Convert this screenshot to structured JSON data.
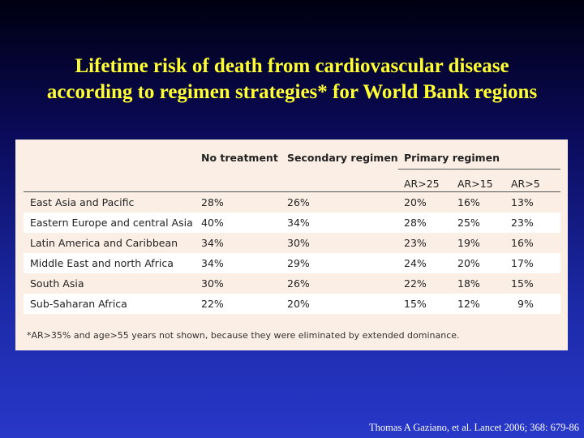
{
  "title": {
    "line1": "Lifetime risk of death from cardiovascular disease",
    "line2": "according to regimen strategies* for World Bank regions"
  },
  "table": {
    "headers": {
      "no_treatment": "No treatment",
      "secondary": "Secondary regimen",
      "primary": "Primary regimen"
    },
    "subheaders": [
      "AR>25",
      "AR>15",
      "AR>5"
    ],
    "rows": [
      {
        "region": "East Asia and Pacific",
        "values": [
          "28%",
          "26%",
          "20%",
          "16%",
          "13%"
        ]
      },
      {
        "region": "Eastern Europe and central Asia",
        "values": [
          "40%",
          "34%",
          "28%",
          "25%",
          "23%"
        ]
      },
      {
        "region": "Latin America and Caribbean",
        "values": [
          "34%",
          "30%",
          "23%",
          "19%",
          "16%"
        ]
      },
      {
        "region": "Middle East and north Africa",
        "values": [
          "34%",
          "29%",
          "24%",
          "20%",
          "17%"
        ]
      },
      {
        "region": "South Asia",
        "values": [
          "30%",
          "26%",
          "22%",
          "18%",
          "15%"
        ]
      },
      {
        "region": "Sub-Saharan Africa",
        "values": [
          "22%",
          "20%",
          "15%",
          "12%",
          "9%"
        ]
      }
    ],
    "footnote": "*AR>35% and age>55 years not shown, because they were eliminated by extended dominance."
  },
  "citation": "Thomas A Gaziano, et al. Lancet 2006; 368: 679-86",
  "colors": {
    "title": "#ffff33",
    "panel": "#fbeee5",
    "alt_row": "#ffffff",
    "text": "#222222"
  }
}
